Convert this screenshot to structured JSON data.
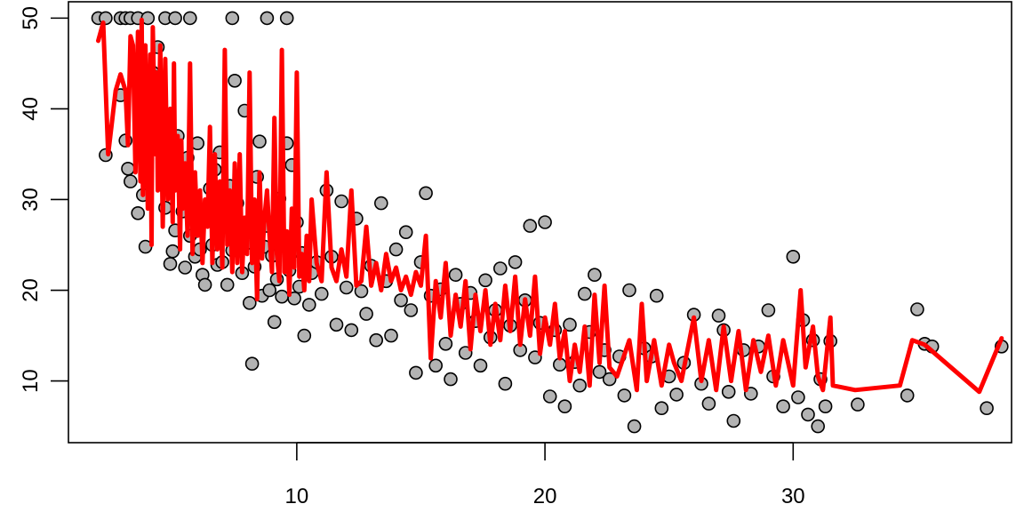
{
  "chart_data": {
    "type": "scatter",
    "title": "",
    "xlabel": "",
    "ylabel": "",
    "xlim": [
      0.8,
      38.8
    ],
    "ylim": [
      3.2,
      51.8
    ],
    "x_ticks": [
      10,
      20,
      30
    ],
    "y_ticks": [
      10,
      20,
      30,
      40,
      50
    ],
    "grid": false,
    "legend": "none",
    "point_fill": "#b3b3b3",
    "point_stroke": "#000000",
    "line_color": "#ff0000",
    "points": [
      [
        2.0,
        50
      ],
      [
        2.3,
        50
      ],
      [
        2.9,
        50
      ],
      [
        3.1,
        50
      ],
      [
        3.3,
        50
      ],
      [
        3.6,
        50
      ],
      [
        4.0,
        50
      ],
      [
        4.7,
        50
      ],
      [
        5.1,
        50
      ],
      [
        5.7,
        50
      ],
      [
        7.4,
        50
      ],
      [
        8.8,
        50
      ],
      [
        9.6,
        50
      ],
      [
        2.3,
        34.9
      ],
      [
        2.9,
        41.5
      ],
      [
        3.1,
        36.5
      ],
      [
        3.2,
        33.4
      ],
      [
        3.3,
        32.0
      ],
      [
        3.5,
        45.4
      ],
      [
        3.6,
        28.5
      ],
      [
        3.8,
        30.5
      ],
      [
        3.9,
        24.8
      ],
      [
        4.0,
        37.5
      ],
      [
        4.2,
        44.0
      ],
      [
        4.3,
        43.5
      ],
      [
        4.4,
        46.8
      ],
      [
        4.5,
        35.4
      ],
      [
        4.6,
        31.6
      ],
      [
        4.7,
        29.1
      ],
      [
        4.8,
        33.1
      ],
      [
        4.9,
        22.9
      ],
      [
        5.0,
        24.3
      ],
      [
        5.1,
        26.6
      ],
      [
        5.2,
        37.0
      ],
      [
        5.3,
        32.9
      ],
      [
        5.4,
        28.7
      ],
      [
        5.5,
        22.5
      ],
      [
        5.6,
        34.6
      ],
      [
        5.7,
        26.0
      ],
      [
        5.8,
        30.1
      ],
      [
        5.9,
        23.7
      ],
      [
        6.0,
        36.2
      ],
      [
        6.1,
        24.5
      ],
      [
        6.2,
        21.7
      ],
      [
        6.3,
        20.6
      ],
      [
        6.4,
        27.9
      ],
      [
        6.5,
        31.2
      ],
      [
        6.6,
        25.0
      ],
      [
        6.7,
        33.3
      ],
      [
        6.8,
        22.8
      ],
      [
        6.9,
        35.2
      ],
      [
        7.0,
        23.1
      ],
      [
        7.1,
        28.4
      ],
      [
        7.2,
        20.6
      ],
      [
        7.3,
        31.5
      ],
      [
        7.4,
        24.4
      ],
      [
        7.5,
        43.1
      ],
      [
        7.6,
        29.6
      ],
      [
        7.7,
        26.4
      ],
      [
        7.8,
        21.9
      ],
      [
        7.9,
        39.8
      ],
      [
        8.0,
        25.2
      ],
      [
        8.1,
        18.6
      ],
      [
        8.2,
        11.9
      ],
      [
        8.3,
        22.6
      ],
      [
        8.4,
        32.5
      ],
      [
        8.5,
        36.4
      ],
      [
        8.6,
        19.4
      ],
      [
        8.7,
        24.8
      ],
      [
        8.8,
        27.1
      ],
      [
        8.9,
        20.0
      ],
      [
        9.0,
        23.8
      ],
      [
        9.1,
        16.5
      ],
      [
        9.2,
        21.2
      ],
      [
        9.3,
        30.1
      ],
      [
        9.4,
        19.3
      ],
      [
        9.5,
        25.0
      ],
      [
        9.6,
        36.2
      ],
      [
        9.7,
        22.2
      ],
      [
        9.8,
        33.8
      ],
      [
        9.9,
        19.1
      ],
      [
        10.0,
        27.5
      ],
      [
        10.1,
        20.4
      ],
      [
        10.2,
        24.1
      ],
      [
        10.3,
        15.0
      ],
      [
        10.4,
        22.8
      ],
      [
        10.5,
        18.4
      ],
      [
        10.6,
        21.9
      ],
      [
        10.8,
        23.1
      ],
      [
        11.0,
        19.6
      ],
      [
        11.2,
        31.0
      ],
      [
        11.4,
        23.7
      ],
      [
        11.6,
        16.2
      ],
      [
        11.8,
        29.8
      ],
      [
        12.0,
        20.3
      ],
      [
        12.2,
        15.6
      ],
      [
        12.4,
        27.9
      ],
      [
        12.6,
        19.9
      ],
      [
        12.8,
        17.4
      ],
      [
        13.0,
        22.7
      ],
      [
        13.2,
        14.5
      ],
      [
        13.4,
        29.6
      ],
      [
        13.6,
        21.0
      ],
      [
        13.8,
        15.0
      ],
      [
        14.0,
        24.5
      ],
      [
        14.2,
        18.9
      ],
      [
        14.4,
        26.4
      ],
      [
        14.6,
        17.8
      ],
      [
        14.8,
        10.9
      ],
      [
        15.0,
        23.1
      ],
      [
        15.2,
        30.7
      ],
      [
        15.4,
        19.4
      ],
      [
        15.6,
        11.7
      ],
      [
        15.8,
        20.1
      ],
      [
        16.0,
        14.1
      ],
      [
        16.2,
        10.2
      ],
      [
        16.4,
        21.7
      ],
      [
        16.6,
        18.5
      ],
      [
        16.8,
        13.1
      ],
      [
        17.0,
        19.7
      ],
      [
        17.2,
        16.6
      ],
      [
        17.4,
        11.7
      ],
      [
        17.6,
        21.1
      ],
      [
        17.8,
        14.8
      ],
      [
        18.0,
        17.8
      ],
      [
        18.2,
        22.4
      ],
      [
        18.4,
        9.7
      ],
      [
        18.6,
        16.1
      ],
      [
        18.8,
        23.1
      ],
      [
        19.0,
        13.4
      ],
      [
        19.2,
        18.9
      ],
      [
        19.4,
        27.1
      ],
      [
        19.6,
        12.6
      ],
      [
        19.8,
        16.4
      ],
      [
        20.0,
        27.5
      ],
      [
        20.2,
        8.3
      ],
      [
        20.4,
        15.6
      ],
      [
        20.6,
        11.8
      ],
      [
        20.8,
        7.2
      ],
      [
        21.0,
        16.2
      ],
      [
        21.2,
        12.1
      ],
      [
        21.4,
        9.5
      ],
      [
        21.6,
        19.6
      ],
      [
        21.8,
        15.4
      ],
      [
        22.0,
        21.7
      ],
      [
        22.2,
        11.0
      ],
      [
        22.4,
        13.4
      ],
      [
        22.6,
        10.2
      ],
      [
        23.0,
        12.7
      ],
      [
        23.2,
        8.4
      ],
      [
        23.4,
        20.0
      ],
      [
        23.6,
        5.0
      ],
      [
        24.0,
        13.6
      ],
      [
        24.3,
        12.7
      ],
      [
        24.5,
        19.4
      ],
      [
        24.7,
        7.0
      ],
      [
        25.0,
        10.5
      ],
      [
        25.3,
        8.5
      ],
      [
        25.6,
        12.0
      ],
      [
        26.0,
        17.3
      ],
      [
        26.3,
        9.7
      ],
      [
        26.6,
        7.5
      ],
      [
        27.0,
        17.2
      ],
      [
        27.2,
        15.6
      ],
      [
        27.4,
        8.8
      ],
      [
        27.6,
        5.6
      ],
      [
        28.0,
        13.4
      ],
      [
        28.3,
        8.6
      ],
      [
        28.6,
        13.8
      ],
      [
        29.0,
        17.8
      ],
      [
        29.2,
        10.5
      ],
      [
        29.6,
        7.2
      ],
      [
        30.0,
        23.7
      ],
      [
        30.2,
        8.2
      ],
      [
        30.4,
        16.7
      ],
      [
        30.6,
        6.3
      ],
      [
        30.8,
        14.5
      ],
      [
        31.0,
        5.0
      ],
      [
        31.1,
        10.2
      ],
      [
        31.3,
        7.2
      ],
      [
        31.5,
        14.4
      ],
      [
        32.6,
        7.4
      ],
      [
        34.6,
        8.4
      ],
      [
        35.0,
        17.9
      ],
      [
        35.3,
        14.1
      ],
      [
        35.6,
        13.8
      ],
      [
        37.8,
        7.0
      ],
      [
        38.4,
        13.8
      ]
    ],
    "line": [
      [
        2.0,
        47.5
      ],
      [
        2.2,
        49.5
      ],
      [
        2.4,
        35.0
      ],
      [
        2.7,
        42.0
      ],
      [
        2.9,
        43.8
      ],
      [
        3.1,
        42.0
      ],
      [
        3.2,
        36.0
      ],
      [
        3.3,
        48.0
      ],
      [
        3.4,
        47.0
      ],
      [
        3.5,
        33.0
      ],
      [
        3.6,
        48.5
      ],
      [
        3.7,
        32.0
      ],
      [
        3.75,
        49.8
      ],
      [
        3.8,
        30.5
      ],
      [
        3.9,
        47.0
      ],
      [
        4.0,
        29.0
      ],
      [
        4.1,
        46.0
      ],
      [
        4.15,
        25.0
      ],
      [
        4.2,
        49.0
      ],
      [
        4.3,
        35.0
      ],
      [
        4.35,
        44.0
      ],
      [
        4.4,
        31.0
      ],
      [
        4.5,
        47.0
      ],
      [
        4.6,
        27.0
      ],
      [
        4.7,
        45.5
      ],
      [
        4.8,
        30.0
      ],
      [
        4.9,
        40.0
      ],
      [
        5.0,
        27.5
      ],
      [
        5.05,
        45.0
      ],
      [
        5.1,
        31.0
      ],
      [
        5.2,
        37.0
      ],
      [
        5.3,
        24.5
      ],
      [
        5.35,
        36.5
      ],
      [
        5.4,
        29.0
      ],
      [
        5.5,
        34.0
      ],
      [
        5.6,
        26.0
      ],
      [
        5.7,
        45.0
      ],
      [
        5.8,
        24.0
      ],
      [
        5.9,
        33.0
      ],
      [
        6.0,
        26.0
      ],
      [
        6.1,
        31.0
      ],
      [
        6.2,
        23.0
      ],
      [
        6.3,
        30.0
      ],
      [
        6.4,
        27.0
      ],
      [
        6.5,
        38.0
      ],
      [
        6.6,
        23.0
      ],
      [
        6.7,
        35.0
      ],
      [
        6.8,
        24.5
      ],
      [
        6.9,
        32.0
      ],
      [
        7.0,
        22.5
      ],
      [
        7.1,
        46.5
      ],
      [
        7.2,
        25.0
      ],
      [
        7.3,
        31.0
      ],
      [
        7.4,
        22.0
      ],
      [
        7.5,
        34.0
      ],
      [
        7.6,
        23.0
      ],
      [
        7.7,
        35.0
      ],
      [
        7.8,
        22.0
      ],
      [
        7.9,
        28.0
      ],
      [
        8.0,
        24.0
      ],
      [
        8.1,
        44.0
      ],
      [
        8.2,
        23.0
      ],
      [
        8.3,
        30.0
      ],
      [
        8.4,
        19.0
      ],
      [
        8.5,
        33.0
      ],
      [
        8.6,
        23.5
      ],
      [
        8.7,
        28.0
      ],
      [
        8.8,
        31.0
      ],
      [
        8.9,
        26.0
      ],
      [
        9.0,
        22.0
      ],
      [
        9.1,
        39.0
      ],
      [
        9.2,
        24.0
      ],
      [
        9.3,
        21.0
      ],
      [
        9.4,
        46.5
      ],
      [
        9.5,
        22.0
      ],
      [
        9.6,
        26.5
      ],
      [
        9.7,
        19.5
      ],
      [
        9.8,
        29.0
      ],
      [
        9.9,
        22.5
      ],
      [
        10.0,
        44.0
      ],
      [
        10.1,
        21.5
      ],
      [
        10.2,
        24.0
      ],
      [
        10.3,
        20.0
      ],
      [
        10.4,
        26.0
      ],
      [
        10.5,
        21.0
      ],
      [
        10.6,
        30.0
      ],
      [
        10.8,
        23.0
      ],
      [
        11.0,
        21.0
      ],
      [
        11.2,
        33.0
      ],
      [
        11.4,
        22.5
      ],
      [
        11.6,
        21.0
      ],
      [
        11.8,
        24.5
      ],
      [
        12.0,
        21.5
      ],
      [
        12.2,
        31.0
      ],
      [
        12.4,
        20.5
      ],
      [
        12.6,
        21.0
      ],
      [
        12.8,
        27.0
      ],
      [
        13.0,
        20.5
      ],
      [
        13.2,
        23.0
      ],
      [
        13.4,
        20.0
      ],
      [
        13.6,
        24.0
      ],
      [
        13.8,
        21.0
      ],
      [
        14.0,
        22.5
      ],
      [
        14.2,
        20.0
      ],
      [
        14.4,
        21.5
      ],
      [
        14.6,
        19.5
      ],
      [
        14.8,
        22.0
      ],
      [
        15.0,
        20.5
      ],
      [
        15.2,
        26.0
      ],
      [
        15.4,
        12.5
      ],
      [
        15.6,
        21.0
      ],
      [
        15.8,
        17.0
      ],
      [
        16.0,
        23.0
      ],
      [
        16.2,
        15.0
      ],
      [
        16.4,
        19.5
      ],
      [
        16.6,
        16.0
      ],
      [
        16.8,
        21.0
      ],
      [
        17.0,
        13.5
      ],
      [
        17.2,
        19.5
      ],
      [
        17.4,
        15.5
      ],
      [
        17.6,
        20.0
      ],
      [
        17.8,
        14.0
      ],
      [
        18.0,
        18.5
      ],
      [
        18.2,
        14.5
      ],
      [
        18.4,
        20.5
      ],
      [
        18.6,
        15.5
      ],
      [
        18.8,
        21.5
      ],
      [
        19.0,
        14.0
      ],
      [
        19.2,
        19.0
      ],
      [
        19.4,
        15.0
      ],
      [
        19.6,
        21.5
      ],
      [
        19.8,
        13.0
      ],
      [
        20.0,
        17.0
      ],
      [
        20.2,
        14.0
      ],
      [
        20.4,
        18.5
      ],
      [
        20.6,
        12.5
      ],
      [
        20.8,
        15.5
      ],
      [
        21.0,
        10.0
      ],
      [
        21.2,
        14.0
      ],
      [
        21.4,
        11.0
      ],
      [
        21.6,
        16.0
      ],
      [
        21.8,
        9.5
      ],
      [
        22.0,
        19.5
      ],
      [
        22.2,
        12.0
      ],
      [
        22.4,
        20.5
      ],
      [
        22.6,
        11.5
      ],
      [
        22.9,
        10.5
      ],
      [
        23.4,
        14.5
      ],
      [
        23.7,
        9.0
      ],
      [
        23.9,
        18.5
      ],
      [
        24.1,
        10.0
      ],
      [
        24.4,
        14.5
      ],
      [
        24.7,
        9.5
      ],
      [
        25.0,
        14.0
      ],
      [
        25.2,
        12.0
      ],
      [
        25.5,
        10.0
      ],
      [
        26.0,
        17.0
      ],
      [
        26.3,
        10.0
      ],
      [
        26.6,
        14.5
      ],
      [
        26.9,
        9.0
      ],
      [
        27.2,
        16.0
      ],
      [
        27.5,
        10.0
      ],
      [
        27.8,
        15.5
      ],
      [
        28.1,
        9.0
      ],
      [
        28.4,
        14.5
      ],
      [
        28.7,
        11.0
      ],
      [
        29.0,
        15.0
      ],
      [
        29.3,
        9.5
      ],
      [
        29.6,
        14.5
      ],
      [
        30.0,
        9.5
      ],
      [
        30.3,
        20.0
      ],
      [
        30.5,
        11.5
      ],
      [
        30.8,
        16.0
      ],
      [
        31.0,
        10.5
      ],
      [
        31.2,
        9.0
      ],
      [
        31.5,
        17.0
      ],
      [
        31.6,
        9.5
      ],
      [
        32.5,
        9.0
      ],
      [
        34.3,
        9.5
      ],
      [
        34.8,
        14.5
      ],
      [
        35.3,
        14.0
      ],
      [
        37.5,
        8.8
      ],
      [
        38.4,
        14.7
      ]
    ]
  }
}
